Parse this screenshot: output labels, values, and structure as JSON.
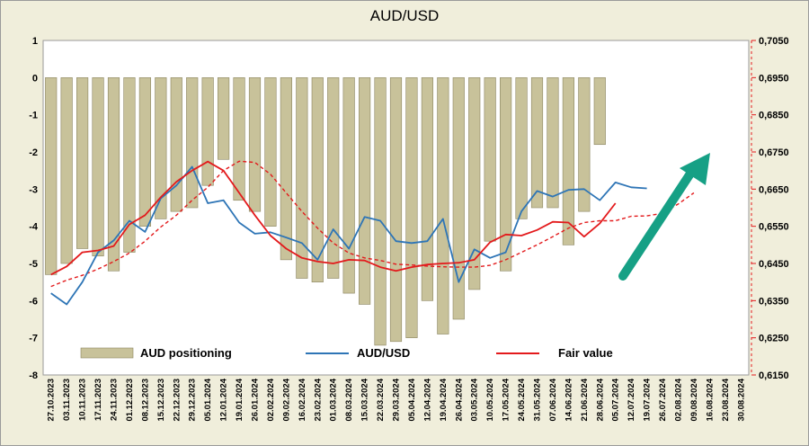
{
  "chart_data": {
    "type": "bar+line",
    "title": "AUD/USD",
    "y_left": {
      "min": -8,
      "max": 1,
      "ticks": [
        "1",
        "0",
        "-1",
        "-2",
        "-3",
        "-4",
        "-5",
        "-6",
        "-7",
        "-8"
      ]
    },
    "y_right": {
      "min": 0.615,
      "max": 0.705,
      "ticks": [
        "0,7050",
        "0,6950",
        "0,6850",
        "0,6750",
        "0,6650",
        "0,6550",
        "0,6450",
        "0,6350",
        "0,6250",
        "0,6150"
      ]
    },
    "x_labels": [
      "27.10.2023",
      "03.11.2023",
      "10.11.2023",
      "17.11.2023",
      "24.11.2023",
      "01.12.2023",
      "08.12.2023",
      "15.12.2023",
      "22.12.2023",
      "29.12.2023",
      "05.01.2024",
      "12.01.2024",
      "19.01.2024",
      "26.01.2024",
      "02.02.2024",
      "09.02.2024",
      "16.02.2024",
      "23.02.2024",
      "01.03.2024",
      "08.03.2024",
      "15.03.2024",
      "22.03.2024",
      "29.03.2024",
      "05.04.2024",
      "12.04.2024",
      "19.04.2024",
      "26.04.2024",
      "03.05.2024",
      "10.05.2024",
      "17.05.2024",
      "24.05.2024",
      "31.05.2024",
      "07.06.2024",
      "14.06.2024",
      "21.06.2024",
      "28.06.2024",
      "05.07.2024",
      "12.07.2024",
      "19.07.2024",
      "26.07.2024",
      "02.08.2024",
      "09.08.2024",
      "16.08.2024",
      "23.08.2024",
      "30.08.2024"
    ],
    "series": [
      {
        "name": "AUD positioning",
        "type": "bar",
        "color": "#c8c29a",
        "values": [
          -5.3,
          -5.0,
          -4.6,
          -4.8,
          -5.2,
          -4.7,
          -4.0,
          -3.8,
          -3.6,
          -3.5,
          -2.9,
          -2.2,
          -3.3,
          -3.6,
          -4.0,
          -4.9,
          -5.4,
          -5.5,
          -5.4,
          -5.8,
          -6.1,
          -7.2,
          -7.1,
          -7.0,
          -6.0,
          -6.9,
          -6.5,
          -5.7,
          -4.4,
          -5.2,
          -3.8,
          -3.5,
          -3.5,
          -4.5,
          -3.6,
          -1.8
        ]
      },
      {
        "name": "AUD/USD",
        "type": "line",
        "color": "#2e75b6",
        "values": [
          0.637,
          0.634,
          0.64,
          0.648,
          0.6512,
          0.6565,
          0.6535,
          0.6625,
          0.666,
          0.671,
          0.6612,
          0.662,
          0.656,
          0.653,
          0.6534,
          0.652,
          0.6505,
          0.646,
          0.6542,
          0.649,
          0.6575,
          0.6565,
          0.651,
          0.6505,
          0.651,
          0.657,
          0.64,
          0.6488,
          0.6465,
          0.648,
          0.659,
          0.6645,
          0.663,
          0.6648,
          0.665,
          0.662,
          0.6668,
          0.6655,
          0.6652
        ]
      },
      {
        "name": "Fair value",
        "type": "line",
        "color": "#e31a1c",
        "values": [
          0.642,
          0.6442,
          0.648,
          0.6485,
          0.6497,
          0.6555,
          0.658,
          0.6628,
          0.667,
          0.67,
          0.6724,
          0.67,
          0.664,
          0.658,
          0.6525,
          0.649,
          0.6465,
          0.6455,
          0.645,
          0.646,
          0.6458,
          0.644,
          0.643,
          0.644,
          0.6447,
          0.645,
          0.6452,
          0.646,
          0.6507,
          0.6528,
          0.6525,
          0.654,
          0.6562,
          0.656,
          0.6522,
          0.6558,
          0.6612
        ]
      },
      {
        "name": "Fair value trend",
        "type": "dashed-line",
        "color": "#e31a1c",
        "values": [
          0.6388,
          0.6405,
          0.6418,
          0.6435,
          0.6455,
          0.6478,
          0.651,
          0.6548,
          0.658,
          0.662,
          0.6655,
          0.67,
          0.6725,
          0.6722,
          0.669,
          0.664,
          0.659,
          0.6545,
          0.6505,
          0.6478,
          0.6465,
          0.6458,
          0.6448,
          0.6446,
          0.6443,
          0.6441,
          0.644,
          0.644,
          0.6445,
          0.646,
          0.648,
          0.65,
          0.6522,
          0.6545,
          0.656,
          0.6565,
          0.6565,
          0.6577,
          0.6578,
          0.6585,
          0.661,
          0.664
        ]
      }
    ],
    "legend": [
      "AUD positioning",
      "AUD/USD",
      "Fair value"
    ],
    "legend_position": "bottom",
    "annotation": {
      "type": "arrow",
      "color": "#16a085",
      "direction": "up-right"
    },
    "grid": false
  }
}
